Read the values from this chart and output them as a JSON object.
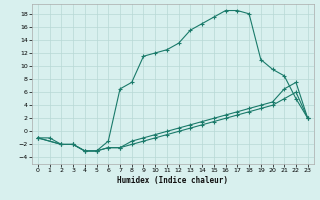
{
  "xlabel": "Humidex (Indice chaleur)",
  "bg_color": "#d8f0ee",
  "line_color": "#1a7a6a",
  "grid_color": "#b8d8d5",
  "xlim": [
    -0.5,
    23.5
  ],
  "ylim": [
    -5,
    19.5
  ],
  "xticks": [
    0,
    1,
    2,
    3,
    4,
    5,
    6,
    7,
    8,
    9,
    10,
    11,
    12,
    13,
    14,
    15,
    16,
    17,
    18,
    19,
    20,
    21,
    22,
    23
  ],
  "yticks": [
    -4,
    -2,
    0,
    2,
    4,
    6,
    8,
    10,
    12,
    14,
    16,
    18
  ],
  "line1_x": [
    0,
    1,
    2,
    3,
    4,
    5,
    6,
    7,
    8,
    9,
    10,
    11,
    12,
    13,
    14,
    15,
    16,
    17,
    18,
    19,
    20,
    21,
    22,
    23
  ],
  "line1_y": [
    -1,
    -1,
    -2,
    -2,
    -3,
    -3,
    -1.5,
    6.5,
    7.5,
    11.5,
    12.0,
    12.5,
    13.5,
    15.5,
    16.5,
    17.5,
    18.5,
    18.5,
    18.0,
    11.0,
    9.5,
    8.5,
    5.0,
    2.0
  ],
  "line2_x": [
    0,
    2,
    3,
    4,
    5,
    6,
    7,
    8,
    9,
    10,
    11,
    12,
    13,
    14,
    15,
    16,
    17,
    18,
    19,
    20,
    21,
    22,
    23
  ],
  "line2_y": [
    -1,
    -2,
    -2,
    -3,
    -3,
    -2.5,
    -2.5,
    -1.5,
    -1.0,
    -0.5,
    0.0,
    0.5,
    1.0,
    1.5,
    2.0,
    2.5,
    3.0,
    3.5,
    4.0,
    4.5,
    6.5,
    7.5,
    2.0
  ],
  "line3_x": [
    0,
    2,
    3,
    4,
    5,
    6,
    7,
    8,
    9,
    10,
    11,
    12,
    13,
    14,
    15,
    16,
    17,
    18,
    19,
    20,
    21,
    22,
    23
  ],
  "line3_y": [
    -1,
    -2,
    -2,
    -3,
    -3,
    -2.5,
    -2.5,
    -2.0,
    -1.5,
    -1.0,
    -0.5,
    0.0,
    0.5,
    1.0,
    1.5,
    2.0,
    2.5,
    3.0,
    3.5,
    4.0,
    5.0,
    6.0,
    2.0
  ]
}
